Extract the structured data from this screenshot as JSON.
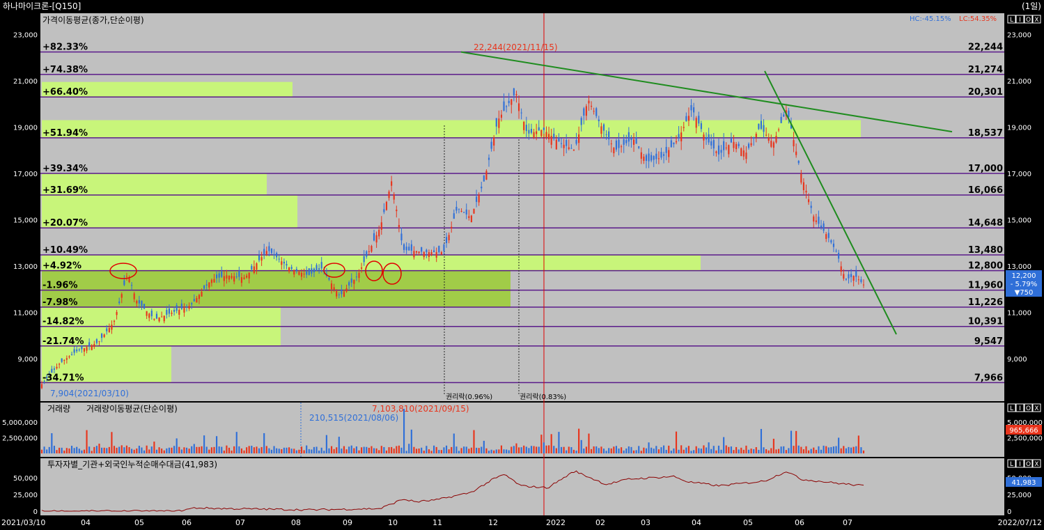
{
  "window": {
    "title": "하나마이크론-[Q150]",
    "period": "(1일)"
  },
  "chart_data": [
    {
      "type": "candlestick",
      "panel": "price",
      "title": "가격이동평균(종가,단순이평)",
      "hc_label": "HC:-45.15%",
      "lc_label": "LC:54.35%",
      "yticks": [
        "23,000",
        "21,000",
        "19,000",
        "17,000",
        "15,000",
        "13,000",
        "11,000",
        "9,000"
      ],
      "ytick_values": [
        23000,
        21000,
        19000,
        17000,
        15000,
        13000,
        11000,
        9000
      ],
      "ylim": [
        7500,
        23900
      ],
      "high_marker": "22,244(2021/11/15)",
      "low_marker": "7,904(2021/03/10)",
      "last_price": {
        "price": "12,200",
        "change": "- 5.79%",
        "delta": "▼750"
      },
      "levels": [
        {
          "pct": "+82.33%",
          "price": "22,244",
          "value": 22244
        },
        {
          "pct": "+74.38%",
          "price": "21,274",
          "value": 21274
        },
        {
          "pct": "+66.40%",
          "price": "20,301",
          "value": 20301
        },
        {
          "pct": "+51.94%",
          "price": "18,537",
          "value": 18537
        },
        {
          "pct": "+39.34%",
          "price": "17,000",
          "value": 17000
        },
        {
          "pct": "+31.69%",
          "price": "16,066",
          "value": 16066
        },
        {
          "pct": "+20.07%",
          "price": "14,648",
          "value": 14648
        },
        {
          "pct": "+10.49%",
          "price": "13,480",
          "value": 13480
        },
        {
          "pct": "+4.92%",
          "price": "12,800",
          "value": 12800
        },
        {
          "pct": "-1.96%",
          "price": "11,960",
          "value": 11960
        },
        {
          "pct": "-7.98%",
          "price": "11,226",
          "value": 11226
        },
        {
          "pct": "-14.82%",
          "price": "10,391",
          "value": 10391
        },
        {
          "pct": "-21.74%",
          "price": "9,547",
          "value": 9547
        },
        {
          "pct": "-34.71%",
          "price": "7,966",
          "value": 7966
        }
      ],
      "rights_labels": [
        "권리락(0.96%)",
        "권리락(0.83%)"
      ],
      "colors": {
        "up": "#e8341c",
        "down": "#2f6fd8",
        "level": "#5a1a8a",
        "trend": "#1e8c1e",
        "band": "#c8f57a",
        "band_dark": "#a1cc48",
        "bg": "#c0c0c0"
      }
    },
    {
      "type": "bar",
      "panel": "volume",
      "title": "거래량",
      "title2": "거래량이동평균(단순이평)",
      "yticks": [
        "5,000,000",
        "2,500,000"
      ],
      "ytick_values": [
        5000000,
        2500000
      ],
      "max_marker": "7,103,810(2021/09/15)",
      "min_marker": "210,515(2021/08/06)",
      "last_value": "965,666"
    },
    {
      "type": "line",
      "panel": "investor",
      "title": "투자자별_기관+외국인누적순매수대금(41,983)",
      "yticks": [
        "50,000",
        "25,000",
        "0"
      ],
      "ytick_values": [
        50000,
        25000,
        0
      ],
      "last_value": "41,983"
    }
  ],
  "xaxis": {
    "start": "2021/03/10",
    "end": "2022/07/12",
    "labels": [
      "04",
      "05",
      "06",
      "07",
      "08",
      "09",
      "10",
      "11",
      "12",
      "2022",
      "02",
      "03",
      "04",
      "05",
      "06",
      "07"
    ]
  },
  "toolbar_glyphs": [
    "L",
    "I",
    "O",
    "X"
  ]
}
